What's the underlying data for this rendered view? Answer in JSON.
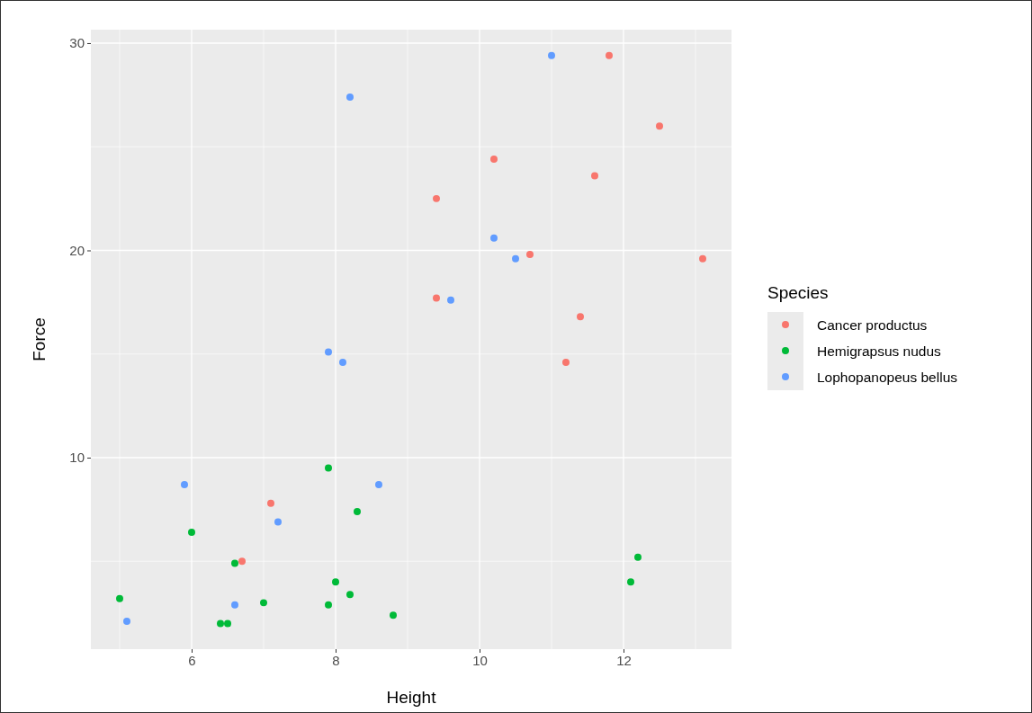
{
  "chart_data": {
    "type": "scatter",
    "xlabel": "Height",
    "ylabel": "Force",
    "legend_title": "Species",
    "xlim": [
      4.6,
      13.5
    ],
    "ylim": [
      0.76,
      30.65
    ],
    "xticks": [
      6,
      8,
      10,
      12
    ],
    "yticks": [
      10,
      20,
      30
    ],
    "grid": true,
    "legend": "right",
    "marker": "circle",
    "series": [
      {
        "name": "Cancer productus",
        "color": "#f8766d",
        "x": [
          11.8,
          12.5,
          10.2,
          11.6,
          9.4,
          10.7,
          13.1,
          9.4,
          11.4,
          11.2,
          7.1,
          6.7
        ],
        "values": [
          29.4,
          26.0,
          24.4,
          23.6,
          22.5,
          19.8,
          19.6,
          17.7,
          16.8,
          14.6,
          7.8,
          5.0
        ]
      },
      {
        "name": "Hemigrapsus nudus",
        "color": "#00ba38",
        "x": [
          7.9,
          8.3,
          6.0,
          12.2,
          6.6,
          8.0,
          12.1,
          8.2,
          5.0,
          7.0,
          7.9,
          8.8,
          6.4,
          6.5
        ],
        "values": [
          9.5,
          7.4,
          6.4,
          5.2,
          4.9,
          4.0,
          4.0,
          3.4,
          3.2,
          3.0,
          2.9,
          2.4,
          2.0,
          2.0
        ]
      },
      {
        "name": "Lophopanopeus bellus",
        "color": "#619cff",
        "x": [
          11.0,
          8.2,
          10.2,
          10.5,
          9.6,
          7.9,
          8.1,
          5.9,
          8.6,
          7.2,
          6.6,
          5.1
        ],
        "values": [
          29.4,
          27.4,
          20.6,
          19.6,
          17.6,
          15.1,
          14.6,
          8.7,
          8.7,
          6.9,
          2.9,
          2.1
        ]
      }
    ]
  }
}
